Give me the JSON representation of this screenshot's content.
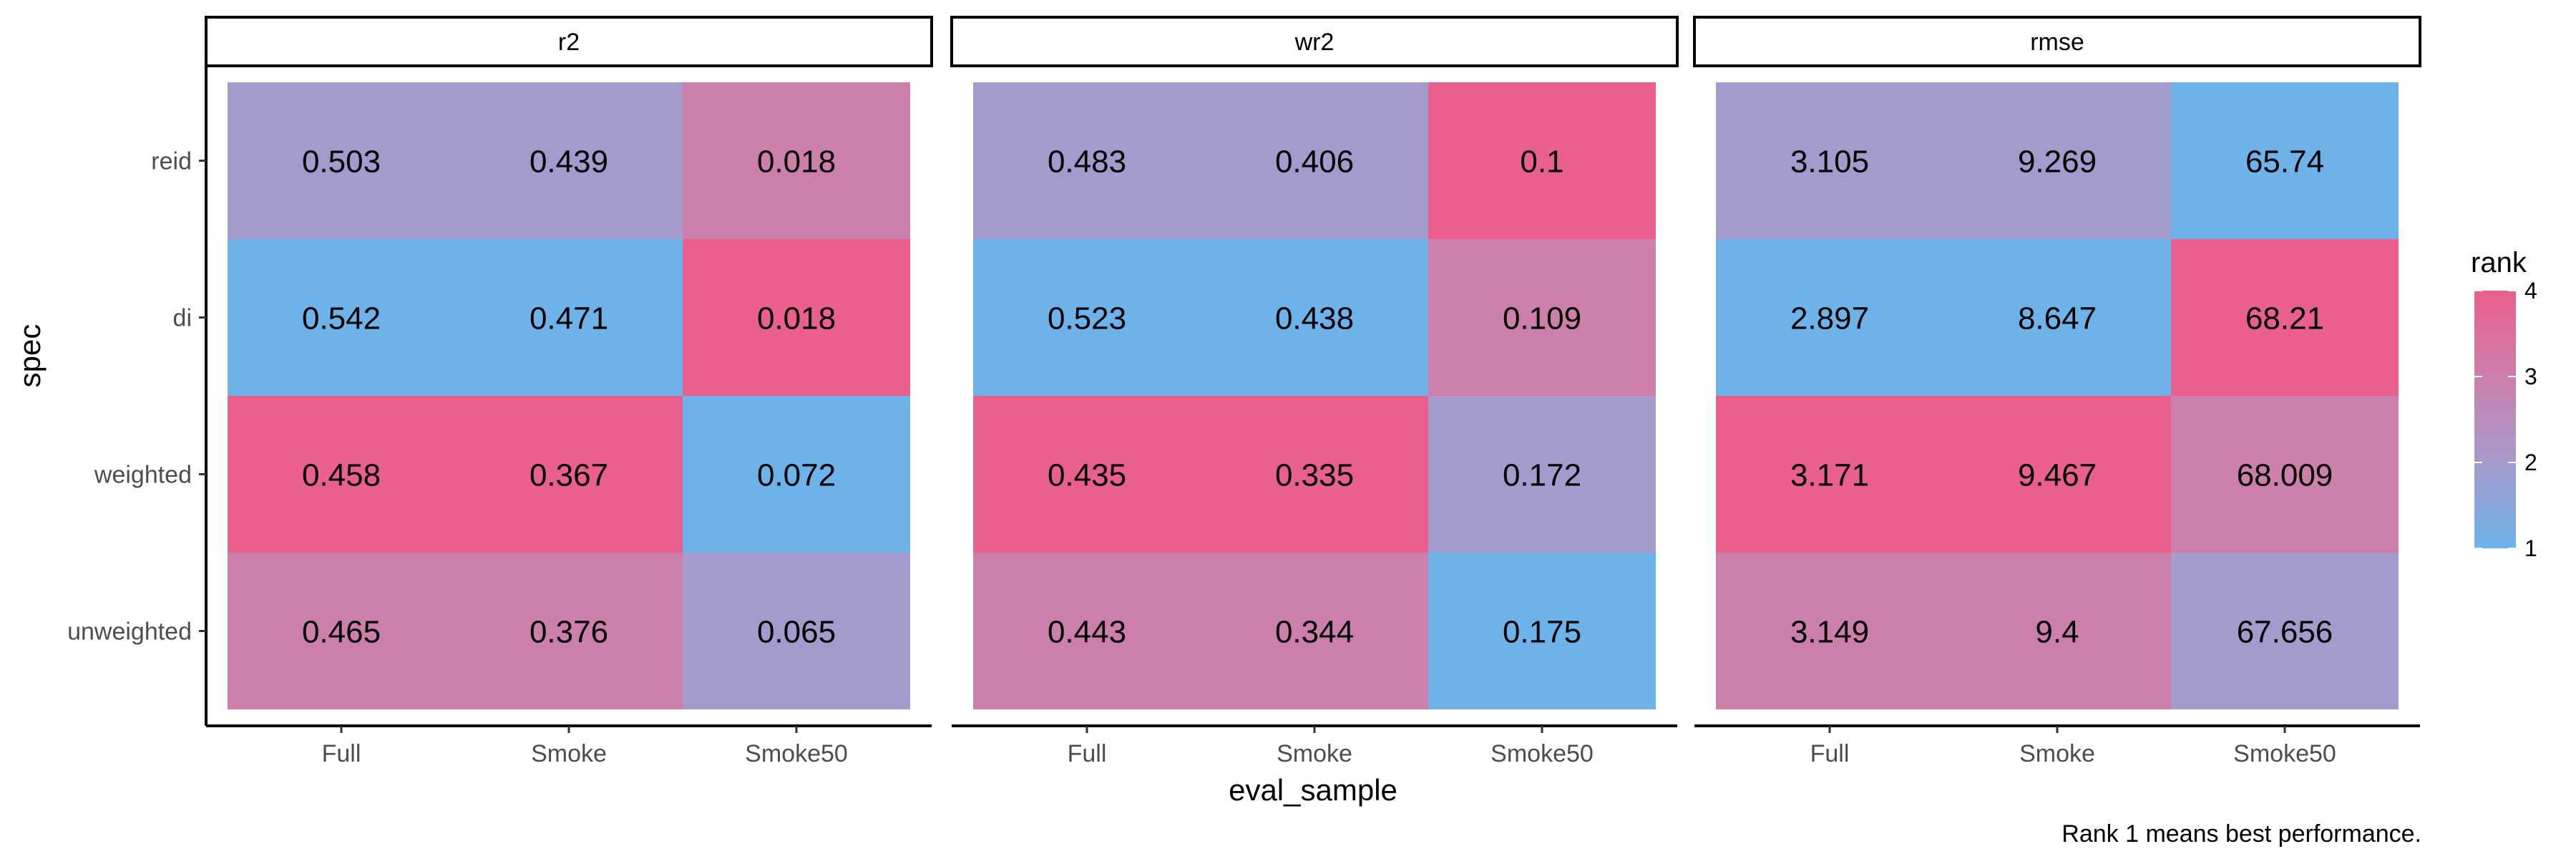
{
  "chart_data": {
    "type": "heatmap",
    "panels": [
      {
        "name": "r2",
        "cells": [
          {
            "spec": "reid",
            "eval_sample": "Full",
            "label": "0.503",
            "rank": 2
          },
          {
            "spec": "reid",
            "eval_sample": "Smoke",
            "label": "0.439",
            "rank": 2
          },
          {
            "spec": "reid",
            "eval_sample": "Smoke50",
            "label": "0.018",
            "rank": 3
          },
          {
            "spec": "di",
            "eval_sample": "Full",
            "label": "0.542",
            "rank": 1
          },
          {
            "spec": "di",
            "eval_sample": "Smoke",
            "label": "0.471",
            "rank": 1
          },
          {
            "spec": "di",
            "eval_sample": "Smoke50",
            "label": "0.018",
            "rank": 4
          },
          {
            "spec": "weighted",
            "eval_sample": "Full",
            "label": "0.458",
            "rank": 4
          },
          {
            "spec": "weighted",
            "eval_sample": "Smoke",
            "label": "0.367",
            "rank": 4
          },
          {
            "spec": "weighted",
            "eval_sample": "Smoke50",
            "label": "0.072",
            "rank": 1
          },
          {
            "spec": "unweighted",
            "eval_sample": "Full",
            "label": "0.465",
            "rank": 3
          },
          {
            "spec": "unweighted",
            "eval_sample": "Smoke",
            "label": "0.376",
            "rank": 3
          },
          {
            "spec": "unweighted",
            "eval_sample": "Smoke50",
            "label": "0.065",
            "rank": 2
          }
        ]
      },
      {
        "name": "wr2",
        "cells": [
          {
            "spec": "reid",
            "eval_sample": "Full",
            "label": "0.483",
            "rank": 2
          },
          {
            "spec": "reid",
            "eval_sample": "Smoke",
            "label": "0.406",
            "rank": 2
          },
          {
            "spec": "reid",
            "eval_sample": "Smoke50",
            "label": "0.1",
            "rank": 4
          },
          {
            "spec": "di",
            "eval_sample": "Full",
            "label": "0.523",
            "rank": 1
          },
          {
            "spec": "di",
            "eval_sample": "Smoke",
            "label": "0.438",
            "rank": 1
          },
          {
            "spec": "di",
            "eval_sample": "Smoke50",
            "label": "0.109",
            "rank": 3
          },
          {
            "spec": "weighted",
            "eval_sample": "Full",
            "label": "0.435",
            "rank": 4
          },
          {
            "spec": "weighted",
            "eval_sample": "Smoke",
            "label": "0.335",
            "rank": 4
          },
          {
            "spec": "weighted",
            "eval_sample": "Smoke50",
            "label": "0.172",
            "rank": 2
          },
          {
            "spec": "unweighted",
            "eval_sample": "Full",
            "label": "0.443",
            "rank": 3
          },
          {
            "spec": "unweighted",
            "eval_sample": "Smoke",
            "label": "0.344",
            "rank": 3
          },
          {
            "spec": "unweighted",
            "eval_sample": "Smoke50",
            "label": "0.175",
            "rank": 1
          }
        ]
      },
      {
        "name": "rmse",
        "cells": [
          {
            "spec": "reid",
            "eval_sample": "Full",
            "label": "3.105",
            "rank": 2
          },
          {
            "spec": "reid",
            "eval_sample": "Smoke",
            "label": "9.269",
            "rank": 2
          },
          {
            "spec": "reid",
            "eval_sample": "Smoke50",
            "label": "65.74",
            "rank": 1
          },
          {
            "spec": "di",
            "eval_sample": "Full",
            "label": "2.897",
            "rank": 1
          },
          {
            "spec": "di",
            "eval_sample": "Smoke",
            "label": "8.647",
            "rank": 1
          },
          {
            "spec": "di",
            "eval_sample": "Smoke50",
            "label": "68.21",
            "rank": 4
          },
          {
            "spec": "weighted",
            "eval_sample": "Full",
            "label": "3.171",
            "rank": 4
          },
          {
            "spec": "weighted",
            "eval_sample": "Smoke",
            "label": "9.467",
            "rank": 4
          },
          {
            "spec": "weighted",
            "eval_sample": "Smoke50",
            "label": "68.009",
            "rank": 3
          },
          {
            "spec": "unweighted",
            "eval_sample": "Full",
            "label": "3.149",
            "rank": 3
          },
          {
            "spec": "unweighted",
            "eval_sample": "Smoke",
            "label": "9.4",
            "rank": 3
          },
          {
            "spec": "unweighted",
            "eval_sample": "Smoke50",
            "label": "67.656",
            "rank": 2
          }
        ]
      }
    ],
    "x_categories": [
      "Full",
      "Smoke",
      "Smoke50"
    ],
    "y_categories": [
      "reid",
      "di",
      "weighted",
      "unweighted"
    ],
    "xlabel": "eval_sample",
    "ylabel": "spec",
    "legend": {
      "title": "rank",
      "ticks": [
        "1",
        "2",
        "3",
        "4"
      ],
      "range": [
        1,
        4
      ],
      "placement": "right"
    },
    "color_scale": {
      "1": "#6db3ea",
      "2": "#a59acc",
      "3": "#cc7fab",
      "4": "#e95f8d"
    },
    "caption": "Rank 1 means best performance.",
    "grid": false
  }
}
